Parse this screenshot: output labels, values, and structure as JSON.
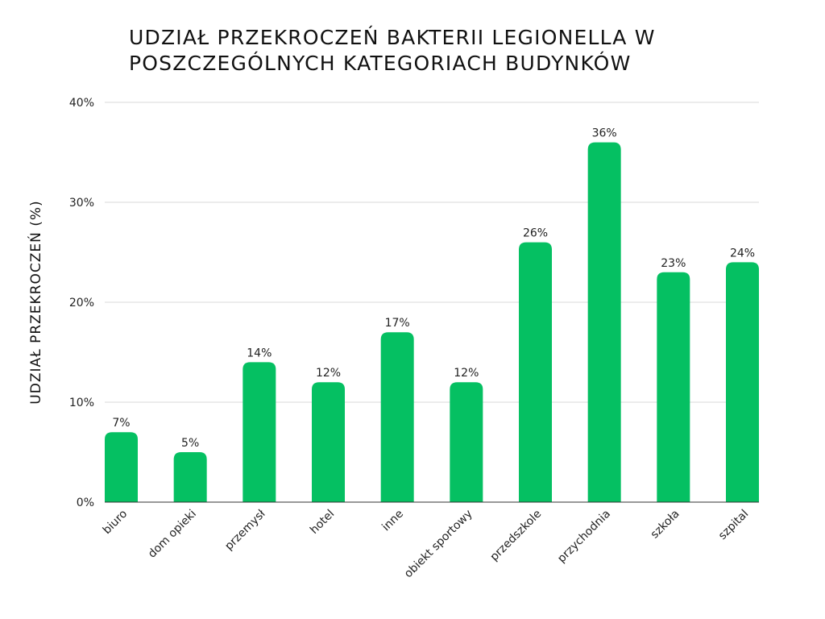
{
  "chart_data": {
    "type": "bar",
    "title": [
      "UDZIAŁ PRZEKROCZEŃ BAKTERII LEGIONELLA W",
      "POSZCZEGÓLNYCH KATEGORIACH BUDYNKÓW"
    ],
    "xlabel": "",
    "ylabel": "UDZIAŁ PRZEKROCZEŃ (%)",
    "ylim": [
      0,
      40
    ],
    "yticks": [
      0,
      10,
      20,
      30,
      40
    ],
    "ytick_labels": [
      "0%",
      "10%",
      "20%",
      "30%",
      "40%"
    ],
    "grid": true,
    "categories": [
      "biuro",
      "dom opieki",
      "przemysł",
      "hotel",
      "inne",
      "obiekt sportowy",
      "przedszkole",
      "przychodnia",
      "szkoła",
      "szpital"
    ],
    "values": [
      7,
      5,
      14,
      12,
      17,
      12,
      26,
      36,
      23,
      24
    ],
    "value_labels": [
      "7%",
      "5%",
      "14%",
      "12%",
      "17%",
      "12%",
      "26%",
      "36%",
      "23%",
      "24%"
    ],
    "bar_color": "#05c062"
  }
}
